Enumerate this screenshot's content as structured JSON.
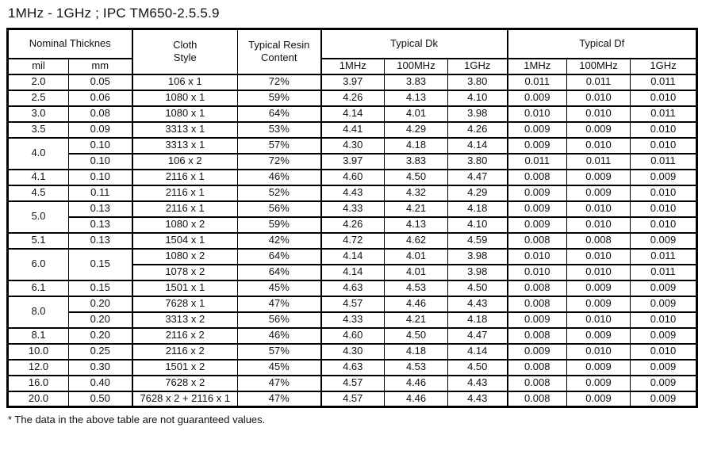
{
  "title": "1MHz - 1GHz ; IPC TM650-2.5.5.9",
  "footnote": "* The data in the above table are not guaranteed values.",
  "table": {
    "headers": {
      "nominal_thickness": "Nominal Thicknes",
      "mil": "mil",
      "mm": "mm",
      "cloth_style": "Cloth\nStyle",
      "resin_content": "Typical Resin\nContent",
      "typical_dk": "Typical Dk",
      "typical_df": "Typical Df",
      "freq": [
        "1MHz",
        "100MHz",
        "1GHz"
      ]
    },
    "rows": [
      {
        "mil": "2.0",
        "mm": "0.05",
        "cloth": "106 x 1",
        "resin": "72%",
        "dk": [
          "3.97",
          "3.83",
          "3.80"
        ],
        "df": [
          "0.011",
          "0.011",
          "0.011"
        ]
      },
      {
        "mil": "2.5",
        "mm": "0.06",
        "cloth": "1080 x 1",
        "resin": "59%",
        "dk": [
          "4.26",
          "4.13",
          "4.10"
        ],
        "df": [
          "0.009",
          "0.010",
          "0.010"
        ]
      },
      {
        "mil": "3.0",
        "mm": "0.08",
        "cloth": "1080 x 1",
        "resin": "64%",
        "dk": [
          "4.14",
          "4.01",
          "3.98"
        ],
        "df": [
          "0.010",
          "0.010",
          "0.011"
        ]
      },
      {
        "mil": "3.5",
        "mm": "0.09",
        "cloth": "3313 x 1",
        "resin": "53%",
        "dk": [
          "4.41",
          "4.29",
          "4.26"
        ],
        "df": [
          "0.009",
          "0.009",
          "0.010"
        ]
      },
      {
        "mil": "4.0",
        "milSpan": 2,
        "mm": "0.10",
        "cloth": "3313 x 1",
        "resin": "57%",
        "dk": [
          "4.30",
          "4.18",
          "4.14"
        ],
        "df": [
          "0.009",
          "0.010",
          "0.010"
        ]
      },
      {
        "mil": null,
        "mm": "0.10",
        "cloth": "106 x 2",
        "resin": "72%",
        "dk": [
          "3.97",
          "3.83",
          "3.80"
        ],
        "df": [
          "0.011",
          "0.011",
          "0.011"
        ]
      },
      {
        "mil": "4.1",
        "mm": "0.10",
        "cloth": "2116 x 1",
        "resin": "46%",
        "dk": [
          "4.60",
          "4.50",
          "4.47"
        ],
        "df": [
          "0.008",
          "0.009",
          "0.009"
        ]
      },
      {
        "mil": "4.5",
        "mm": "0.11",
        "cloth": "2116 x 1",
        "resin": "52%",
        "dk": [
          "4.43",
          "4.32",
          "4.29"
        ],
        "df": [
          "0.009",
          "0.009",
          "0.010"
        ]
      },
      {
        "mil": "5.0",
        "milSpan": 2,
        "mm": "0.13",
        "cloth": "2116 x 1",
        "resin": "56%",
        "dk": [
          "4.33",
          "4.21",
          "4.18"
        ],
        "df": [
          "0.009",
          "0.010",
          "0.010"
        ]
      },
      {
        "mil": null,
        "mm": "0.13",
        "cloth": "1080 x 2",
        "resin": "59%",
        "dk": [
          "4.26",
          "4.13",
          "4.10"
        ],
        "df": [
          "0.009",
          "0.010",
          "0.010"
        ]
      },
      {
        "mil": "5.1",
        "mm": "0.13",
        "cloth": "1504 x 1",
        "resin": "42%",
        "dk": [
          "4.72",
          "4.62",
          "4.59"
        ],
        "df": [
          "0.008",
          "0.008",
          "0.009"
        ]
      },
      {
        "mil": "6.0",
        "milSpan": 2,
        "mm": "0.15",
        "mmSpan": 2,
        "cloth": "1080 x 2",
        "resin": "64%",
        "dk": [
          "4.14",
          "4.01",
          "3.98"
        ],
        "df": [
          "0.010",
          "0.010",
          "0.011"
        ]
      },
      {
        "mil": null,
        "mm": null,
        "cloth": "1078 x 2",
        "resin": "64%",
        "dk": [
          "4.14",
          "4.01",
          "3.98"
        ],
        "df": [
          "0.010",
          "0.010",
          "0.011"
        ]
      },
      {
        "mil": "6.1",
        "mm": "0.15",
        "cloth": "1501 x 1",
        "resin": "45%",
        "dk": [
          "4.63",
          "4.53",
          "4.50"
        ],
        "df": [
          "0.008",
          "0.009",
          "0.009"
        ]
      },
      {
        "mil": "8.0",
        "milSpan": 2,
        "mm": "0.20",
        "cloth": "7628 x 1",
        "resin": "47%",
        "dk": [
          "4.57",
          "4.46",
          "4.43"
        ],
        "df": [
          "0.008",
          "0.009",
          "0.009"
        ]
      },
      {
        "mil": null,
        "mm": "0.20",
        "cloth": "3313 x 2",
        "resin": "56%",
        "dk": [
          "4.33",
          "4.21",
          "4.18"
        ],
        "df": [
          "0.009",
          "0.010",
          "0.010"
        ]
      },
      {
        "mil": "8.1",
        "mm": "0.20",
        "cloth": "2116 x 2",
        "resin": "46%",
        "dk": [
          "4.60",
          "4.50",
          "4.47"
        ],
        "df": [
          "0.008",
          "0.009",
          "0.009"
        ]
      },
      {
        "mil": "10.0",
        "mm": "0.25",
        "cloth": "2116 x 2",
        "resin": "57%",
        "dk": [
          "4.30",
          "4.18",
          "4.14"
        ],
        "df": [
          "0.009",
          "0.010",
          "0.010"
        ]
      },
      {
        "mil": "12.0",
        "mm": "0.30",
        "cloth": "1501 x 2",
        "resin": "45%",
        "dk": [
          "4.63",
          "4.53",
          "4.50"
        ],
        "df": [
          "0.008",
          "0.009",
          "0.009"
        ]
      },
      {
        "mil": "16.0",
        "mm": "0.40",
        "cloth": "7628 x 2",
        "resin": "47%",
        "dk": [
          "4.57",
          "4.46",
          "4.43"
        ],
        "df": [
          "0.008",
          "0.009",
          "0.009"
        ]
      },
      {
        "mil": "20.0",
        "mm": "0.50",
        "cloth": "7628 x 2 + 2116 x 1",
        "resin": "47%",
        "dk": [
          "4.57",
          "4.46",
          "4.43"
        ],
        "df": [
          "0.008",
          "0.009",
          "0.009"
        ]
      }
    ]
  }
}
